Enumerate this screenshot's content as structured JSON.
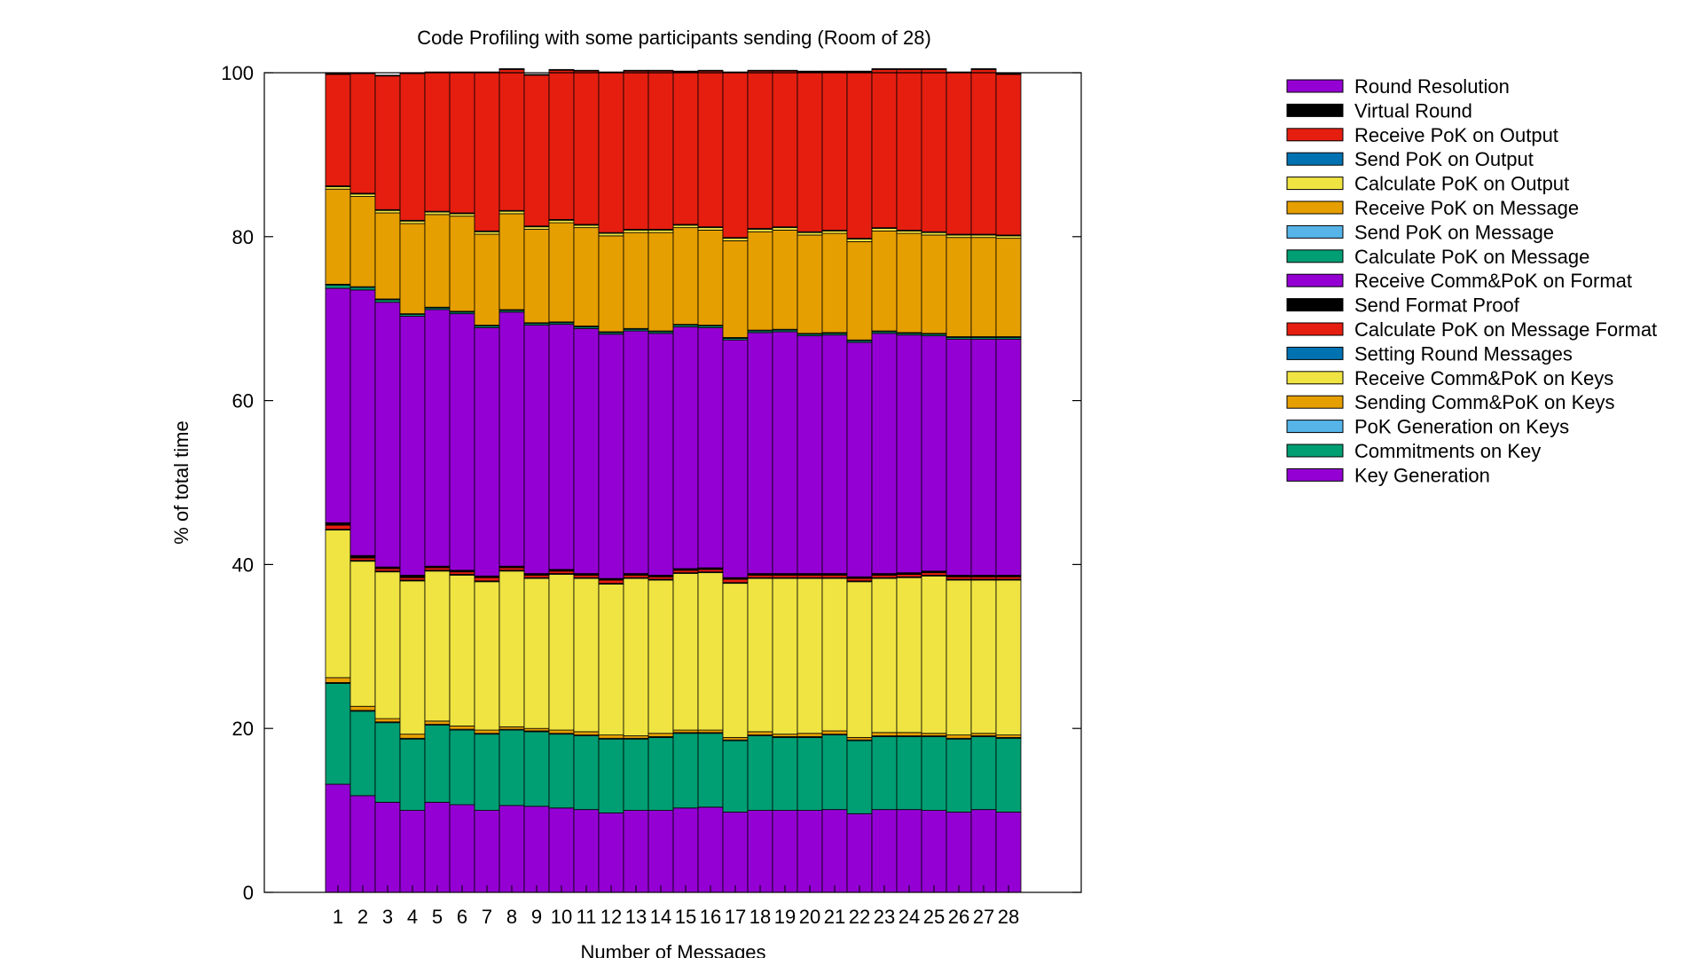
{
  "chart_data": {
    "type": "bar",
    "stacked": true,
    "title": "Code Profiling with some participants sending (Room of 28)",
    "xlabel": "Number of Messages",
    "ylabel": "% of total time",
    "ylim": [
      0,
      100
    ],
    "yticks": [
      "0",
      "20",
      "40",
      "60",
      "80",
      "100"
    ],
    "categories": [
      "1",
      "2",
      "3",
      "4",
      "5",
      "6",
      "7",
      "8",
      "9",
      "10",
      "11",
      "12",
      "13",
      "14",
      "15",
      "16",
      "17",
      "18",
      "19",
      "20",
      "21",
      "22",
      "23",
      "24",
      "25",
      "26",
      "27",
      "28"
    ],
    "legend_position": "right",
    "legend_order": [
      16,
      15,
      14,
      13,
      12,
      11,
      10,
      9,
      8,
      7,
      6,
      5,
      4,
      3,
      2,
      1,
      0
    ],
    "series": [
      {
        "name": "Key Generation",
        "color": "#9400d3",
        "values": [
          13.2,
          11.8,
          11.0,
          10.0,
          11.0,
          10.7,
          10.0,
          10.6,
          10.5,
          10.3,
          10.1,
          9.7,
          10.0,
          10.0,
          10.3,
          10.4,
          9.8,
          10.0,
          10.0,
          10.0,
          10.1,
          9.6,
          10.1,
          10.1,
          10.0,
          9.8,
          10.1,
          9.8
        ]
      },
      {
        "name": "Commitments on Key",
        "color": "#009e73",
        "values": [
          12.3,
          10.3,
          9.7,
          8.7,
          9.4,
          9.1,
          9.3,
          9.2,
          9.1,
          9.0,
          9.0,
          9.0,
          8.7,
          8.9,
          9.1,
          9.0,
          8.7,
          9.1,
          8.9,
          8.9,
          9.1,
          8.9,
          8.9,
          8.9,
          9.0,
          8.9,
          8.9,
          9.0
        ]
      },
      {
        "name": "PoK Generation on Keys",
        "color": "#56b4e9",
        "values": [
          0.1,
          0.1,
          0.1,
          0.1,
          0.1,
          0.1,
          0.1,
          0.1,
          0.1,
          0.1,
          0.1,
          0.1,
          0.1,
          0.1,
          0.1,
          0.1,
          0.1,
          0.1,
          0.1,
          0.1,
          0.1,
          0.1,
          0.1,
          0.1,
          0.1,
          0.1,
          0.1,
          0.1
        ]
      },
      {
        "name": "Sending Comm&PoK on Keys",
        "color": "#e69f00",
        "values": [
          0.6,
          0.5,
          0.4,
          0.5,
          0.4,
          0.4,
          0.4,
          0.3,
          0.3,
          0.4,
          0.4,
          0.4,
          0.3,
          0.4,
          0.3,
          0.3,
          0.3,
          0.4,
          0.3,
          0.4,
          0.4,
          0.3,
          0.4,
          0.4,
          0.3,
          0.4,
          0.3,
          0.3
        ]
      },
      {
        "name": "Receive Comm&PoK on Keys",
        "color": "#f0e442",
        "values": [
          18.0,
          17.7,
          17.9,
          18.7,
          18.3,
          18.4,
          18.1,
          19.0,
          18.3,
          19.0,
          18.7,
          18.4,
          19.2,
          18.7,
          19.1,
          19.2,
          18.8,
          18.7,
          19.0,
          18.9,
          18.6,
          19.0,
          18.8,
          18.9,
          19.2,
          18.9,
          18.7,
          18.9
        ]
      },
      {
        "name": "Setting Round Messages",
        "color": "#0072b2",
        "values": [
          0.1,
          0.1,
          0.1,
          0.1,
          0.1,
          0.1,
          0.1,
          0.1,
          0.1,
          0.1,
          0.1,
          0.1,
          0.1,
          0.1,
          0.1,
          0.1,
          0.1,
          0.1,
          0.1,
          0.1,
          0.1,
          0.1,
          0.1,
          0.1,
          0.1,
          0.1,
          0.1,
          0.1
        ]
      },
      {
        "name": "Calculate PoK on Message Format",
        "color": "#e51e10",
        "values": [
          0.5,
          0.3,
          0.3,
          0.3,
          0.3,
          0.3,
          0.4,
          0.3,
          0.3,
          0.3,
          0.3,
          0.4,
          0.3,
          0.3,
          0.3,
          0.3,
          0.4,
          0.3,
          0.3,
          0.3,
          0.3,
          0.3,
          0.3,
          0.3,
          0.3,
          0.3,
          0.3,
          0.3
        ]
      },
      {
        "name": "Send Format Proof",
        "color": "#000000",
        "values": [
          0.3,
          0.3,
          0.2,
          0.3,
          0.2,
          0.2,
          0.2,
          0.2,
          0.2,
          0.2,
          0.2,
          0.2,
          0.2,
          0.2,
          0.2,
          0.2,
          0.2,
          0.2,
          0.2,
          0.2,
          0.2,
          0.2,
          0.2,
          0.2,
          0.2,
          0.2,
          0.2,
          0.2
        ]
      },
      {
        "name": "Receive Comm&PoK on Format",
        "color": "#9400d3",
        "values": [
          28.6,
          32.4,
          32.3,
          31.6,
          31.3,
          31.3,
          30.3,
          31.0,
          30.3,
          29.9,
          29.9,
          29.8,
          29.6,
          29.5,
          29.5,
          29.3,
          29.0,
          29.4,
          29.5,
          29.0,
          29.1,
          28.6,
          29.3,
          29.0,
          28.7,
          28.8,
          28.8,
          28.8
        ]
      },
      {
        "name": "Calculate PoK on Message",
        "color": "#009e73",
        "values": [
          0.4,
          0.3,
          0.3,
          0.2,
          0.2,
          0.2,
          0.2,
          0.2,
          0.2,
          0.2,
          0.2,
          0.2,
          0.2,
          0.2,
          0.2,
          0.2,
          0.2,
          0.2,
          0.2,
          0.2,
          0.2,
          0.2,
          0.2,
          0.2,
          0.2,
          0.2,
          0.2,
          0.2
        ]
      },
      {
        "name": "Send PoK on Message",
        "color": "#56b4e9",
        "values": [
          0.1,
          0.1,
          0.1,
          0.1,
          0.1,
          0.1,
          0.1,
          0.1,
          0.1,
          0.1,
          0.1,
          0.1,
          0.1,
          0.1,
          0.1,
          0.1,
          0.1,
          0.1,
          0.1,
          0.1,
          0.1,
          0.1,
          0.1,
          0.1,
          0.1,
          0.1,
          0.1,
          0.1
        ]
      },
      {
        "name": "Receive PoK on Message",
        "color": "#e69f00",
        "values": [
          11.6,
          11.0,
          10.5,
          11.0,
          11.3,
          11.6,
          11.1,
          11.7,
          11.4,
          12.1,
          12.0,
          11.7,
          11.7,
          12.0,
          11.8,
          11.6,
          11.8,
          12.0,
          12.1,
          12.0,
          12.1,
          12.0,
          12.2,
          12.1,
          12.0,
          12.1,
          12.1,
          12.0
        ]
      },
      {
        "name": "Calculate PoK on Output",
        "color": "#f0e442",
        "values": [
          0.3,
          0.3,
          0.3,
          0.3,
          0.3,
          0.3,
          0.3,
          0.3,
          0.3,
          0.3,
          0.3,
          0.3,
          0.3,
          0.3,
          0.3,
          0.3,
          0.3,
          0.3,
          0.3,
          0.3,
          0.3,
          0.3,
          0.3,
          0.3,
          0.3,
          0.3,
          0.3,
          0.3
        ]
      },
      {
        "name": "Send PoK on Output",
        "color": "#0072b2",
        "values": [
          0.1,
          0.1,
          0.1,
          0.1,
          0.1,
          0.1,
          0.1,
          0.1,
          0.1,
          0.1,
          0.1,
          0.1,
          0.1,
          0.1,
          0.1,
          0.1,
          0.1,
          0.1,
          0.1,
          0.1,
          0.1,
          0.1,
          0.1,
          0.1,
          0.1,
          0.1,
          0.1,
          0.1
        ]
      },
      {
        "name": "Receive PoK on Output",
        "color": "#e51e10",
        "values": [
          13.6,
          14.6,
          16.3,
          17.9,
          16.9,
          17.1,
          19.3,
          17.2,
          18.4,
          18.2,
          18.7,
          19.5,
          19.3,
          19.3,
          18.6,
          19.0,
          20.1,
          19.2,
          19.0,
          19.5,
          19.3,
          20.3,
          19.3,
          19.6,
          19.8,
          19.7,
          20.1,
          19.6
        ]
      },
      {
        "name": "Virtual Round",
        "color": "#000000",
        "values": [
          0.2,
          0.1,
          0.1,
          0.1,
          0.1,
          0.1,
          0.1,
          0.1,
          0.1,
          0.1,
          0.1,
          0.1,
          0.1,
          0.1,
          0.1,
          0.1,
          0.1,
          0.1,
          0.1,
          0.1,
          0.1,
          0.1,
          0.1,
          0.1,
          0.1,
          0.1,
          0.1,
          0.1
        ]
      },
      {
        "name": "Round Resolution",
        "color": "#9400d3",
        "values": [
          0.0,
          0.0,
          0.0,
          0.0,
          0.0,
          0.0,
          0.0,
          0.0,
          0.0,
          0.0,
          0.0,
          0.0,
          0.0,
          0.0,
          0.0,
          0.0,
          0.0,
          0.0,
          0.0,
          0.0,
          0.0,
          0.0,
          0.0,
          0.0,
          0.0,
          0.0,
          0.0,
          0.0
        ]
      }
    ]
  }
}
